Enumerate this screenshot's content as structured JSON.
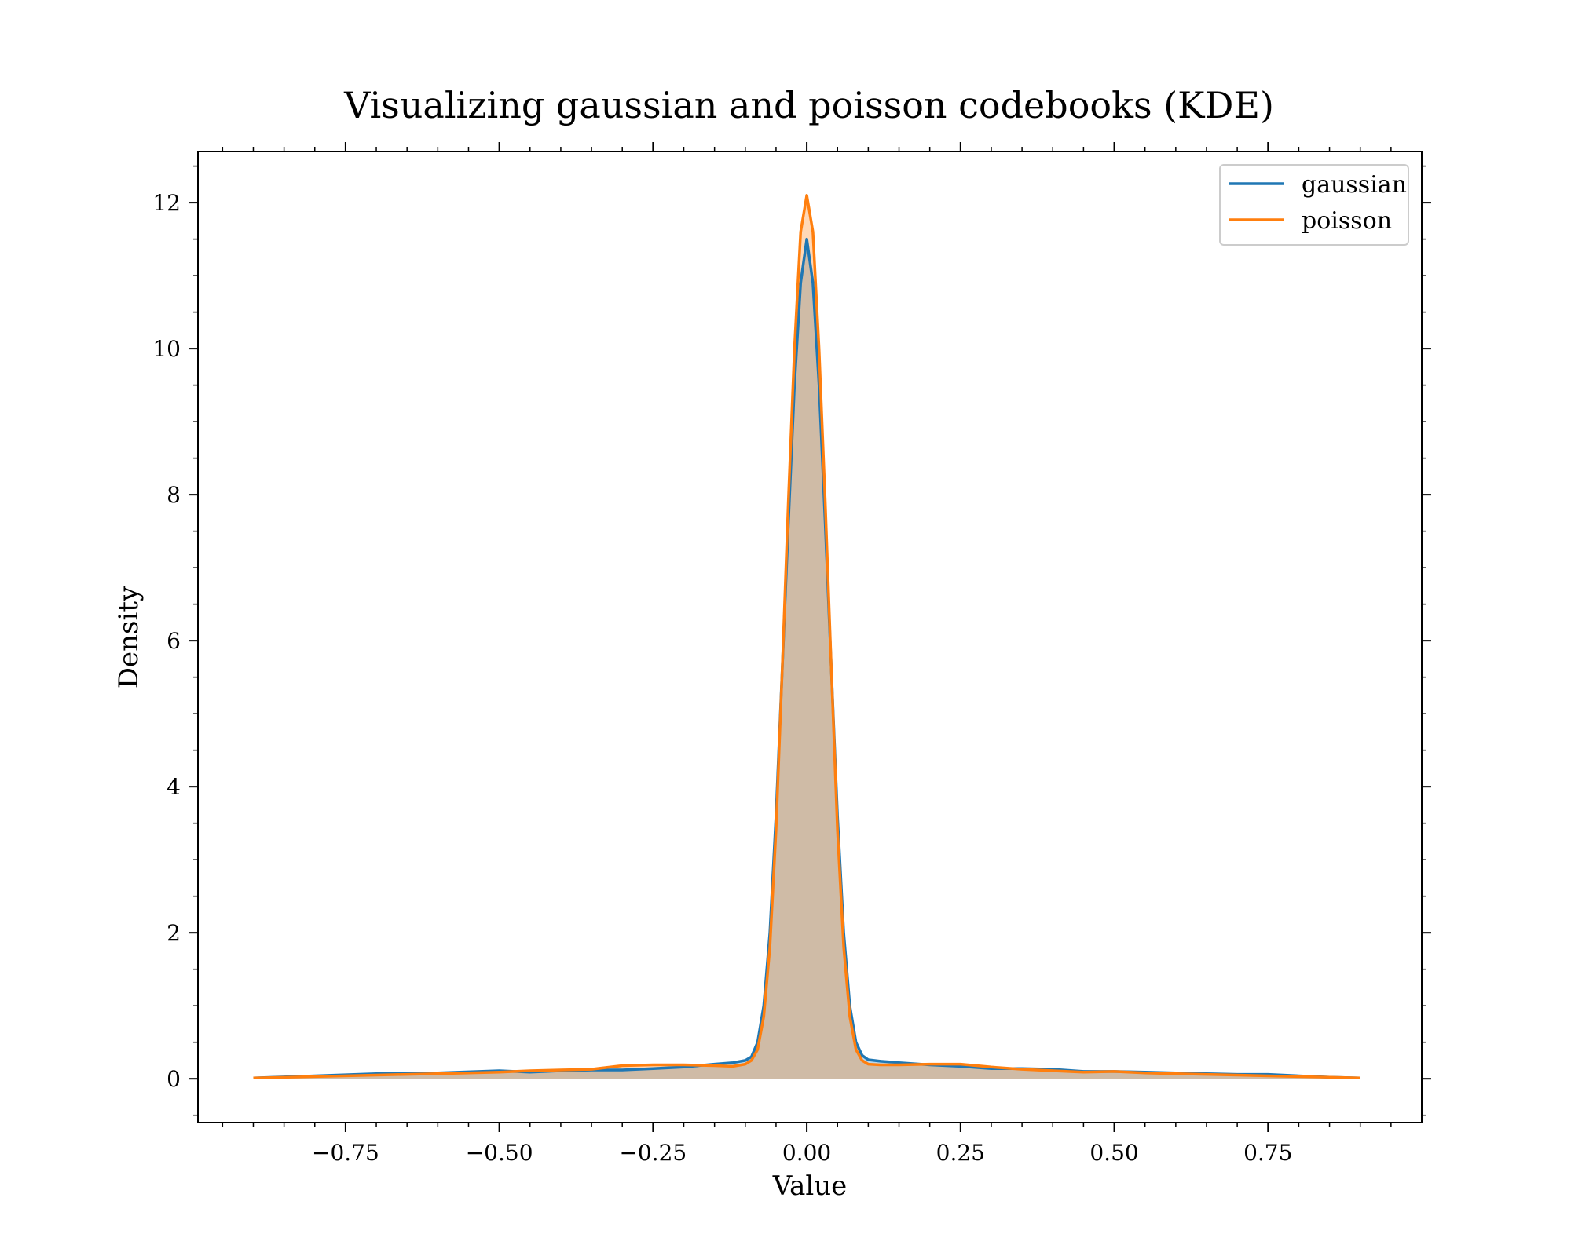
{
  "chart_data": {
    "type": "area",
    "title": "Visualizing gaussian and poisson codebooks (KDE)",
    "xlabel": "Value",
    "ylabel": "Density",
    "xlim": [
      -0.99,
      1.0
    ],
    "ylim": [
      -0.6,
      12.7
    ],
    "xticks": [
      -0.75,
      -0.5,
      -0.25,
      0.0,
      0.25,
      0.5,
      0.75
    ],
    "xtick_labels": [
      "−0.75",
      "−0.50",
      "−0.25",
      "0.00",
      "0.25",
      "0.50",
      "0.75"
    ],
    "yticks": [
      0,
      2,
      4,
      6,
      8,
      10,
      12
    ],
    "ytick_labels": [
      "0",
      "2",
      "4",
      "6",
      "8",
      "10",
      "12"
    ],
    "grid": false,
    "legend_position": "top-right",
    "series": [
      {
        "name": "gaussian",
        "color": "#1f77b4",
        "fill": "#1f77b4",
        "x": [
          -0.9,
          -0.8,
          -0.7,
          -0.6,
          -0.5,
          -0.45,
          -0.4,
          -0.35,
          -0.3,
          -0.25,
          -0.2,
          -0.15,
          -0.12,
          -0.1,
          -0.09,
          -0.08,
          -0.07,
          -0.06,
          -0.05,
          -0.04,
          -0.03,
          -0.02,
          -0.01,
          0.0,
          0.01,
          0.02,
          0.03,
          0.04,
          0.05,
          0.06,
          0.07,
          0.08,
          0.09,
          0.1,
          0.12,
          0.15,
          0.2,
          0.25,
          0.3,
          0.35,
          0.4,
          0.45,
          0.5,
          0.55,
          0.6,
          0.65,
          0.7,
          0.75,
          0.8,
          0.85,
          0.9
        ],
        "y": [
          0.01,
          0.04,
          0.07,
          0.08,
          0.11,
          0.09,
          0.11,
          0.12,
          0.12,
          0.14,
          0.16,
          0.2,
          0.22,
          0.25,
          0.3,
          0.5,
          1.0,
          2.0,
          3.6,
          5.6,
          7.6,
          9.5,
          10.9,
          11.5,
          10.9,
          9.5,
          7.6,
          5.6,
          3.6,
          2.0,
          1.0,
          0.5,
          0.32,
          0.26,
          0.24,
          0.22,
          0.19,
          0.17,
          0.14,
          0.14,
          0.13,
          0.1,
          0.1,
          0.09,
          0.08,
          0.07,
          0.06,
          0.06,
          0.04,
          0.02,
          0.01
        ]
      },
      {
        "name": "poisson",
        "color": "#ff7f0e",
        "fill": "#ff7f0e",
        "x": [
          -0.9,
          -0.8,
          -0.7,
          -0.6,
          -0.5,
          -0.45,
          -0.4,
          -0.35,
          -0.3,
          -0.25,
          -0.2,
          -0.15,
          -0.12,
          -0.1,
          -0.09,
          -0.08,
          -0.07,
          -0.06,
          -0.05,
          -0.04,
          -0.03,
          -0.02,
          -0.01,
          0.0,
          0.01,
          0.02,
          0.03,
          0.04,
          0.05,
          0.06,
          0.07,
          0.08,
          0.09,
          0.1,
          0.12,
          0.15,
          0.2,
          0.25,
          0.3,
          0.35,
          0.4,
          0.45,
          0.5,
          0.55,
          0.6,
          0.65,
          0.7,
          0.75,
          0.8,
          0.85,
          0.9
        ],
        "y": [
          0.01,
          0.03,
          0.05,
          0.07,
          0.09,
          0.11,
          0.12,
          0.13,
          0.18,
          0.19,
          0.19,
          0.18,
          0.17,
          0.2,
          0.25,
          0.4,
          0.85,
          1.8,
          3.4,
          5.6,
          7.9,
          10.0,
          11.6,
          12.1,
          11.6,
          10.0,
          7.9,
          5.6,
          3.4,
          1.8,
          0.85,
          0.4,
          0.25,
          0.2,
          0.19,
          0.19,
          0.2,
          0.2,
          0.16,
          0.13,
          0.11,
          0.09,
          0.1,
          0.08,
          0.07,
          0.06,
          0.05,
          0.04,
          0.03,
          0.02,
          0.01
        ]
      }
    ]
  }
}
